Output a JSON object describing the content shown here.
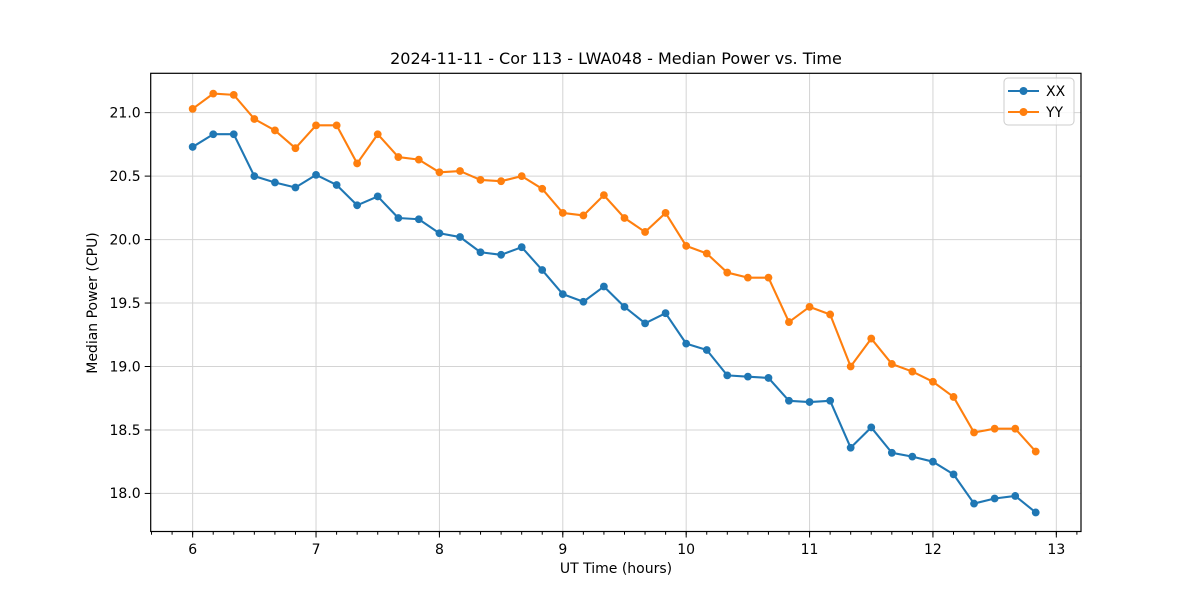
{
  "chart_data": {
    "type": "line",
    "title": "2024-11-11 - Cor 113 - LWA048 - Median Power vs. Time",
    "xlabel": "UT Time (hours)",
    "ylabel": "Median Power (CPU)",
    "xlim": [
      5.66,
      13.2
    ],
    "ylim": [
      17.7,
      21.31
    ],
    "xticks": [
      6,
      7,
      8,
      9,
      10,
      11,
      12,
      13
    ],
    "yticks": [
      18.0,
      18.5,
      19.0,
      19.5,
      20.0,
      20.5,
      21.0
    ],
    "x_minor_step": 0.1666667,
    "grid": true,
    "grid_color": "#d4d4d4",
    "legend_position": "upper right",
    "x": [
      6.0,
      6.167,
      6.333,
      6.5,
      6.667,
      6.833,
      7.0,
      7.167,
      7.333,
      7.5,
      7.667,
      7.833,
      8.0,
      8.167,
      8.333,
      8.5,
      8.667,
      8.833,
      9.0,
      9.167,
      9.333,
      9.5,
      9.667,
      9.833,
      10.0,
      10.167,
      10.333,
      10.5,
      10.667,
      10.833,
      11.0,
      11.167,
      11.333,
      11.5,
      11.667,
      11.833,
      12.0,
      12.167,
      12.333,
      12.5,
      12.667,
      12.833
    ],
    "series": [
      {
        "name": "XX",
        "color": "#1f77b4",
        "values": [
          20.73,
          20.83,
          20.83,
          20.5,
          20.45,
          20.41,
          20.51,
          20.43,
          20.27,
          20.34,
          20.17,
          20.16,
          20.05,
          20.02,
          19.9,
          19.88,
          19.94,
          19.76,
          19.57,
          19.51,
          19.63,
          19.47,
          19.34,
          19.42,
          19.18,
          19.13,
          18.93,
          18.92,
          18.91,
          18.73,
          18.72,
          18.73,
          18.36,
          18.52,
          18.32,
          18.29,
          18.25,
          18.15,
          17.92,
          17.96,
          17.98,
          17.85
        ]
      },
      {
        "name": "YY",
        "color": "#ff7f0e",
        "values": [
          21.03,
          21.15,
          21.14,
          20.95,
          20.86,
          20.72,
          20.9,
          20.9,
          20.6,
          20.83,
          20.65,
          20.63,
          20.53,
          20.54,
          20.47,
          20.46,
          20.5,
          20.4,
          20.21,
          20.19,
          20.35,
          20.17,
          20.06,
          20.21,
          19.95,
          19.89,
          19.74,
          19.7,
          19.7,
          19.35,
          19.47,
          19.41,
          19.0,
          19.22,
          19.02,
          18.96,
          18.88,
          18.76,
          18.48,
          18.51,
          18.51,
          18.33
        ]
      }
    ]
  }
}
